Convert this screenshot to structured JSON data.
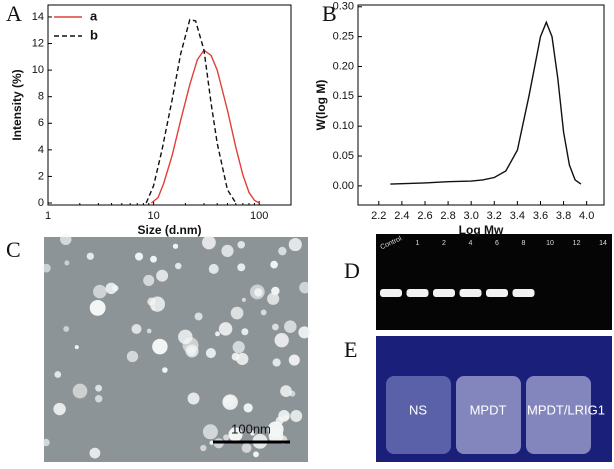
{
  "panel_labels": [
    "A",
    "B",
    "C",
    "D",
    "E"
  ],
  "chart_data": [
    {
      "type": "line",
      "xlabel": "Size (d.nm)",
      "ylabel": "Intensity (%)",
      "xlog": true,
      "xlim": [
        1,
        200
      ],
      "ylim": [
        -0.15,
        14.9
      ],
      "xticks": [
        1,
        10,
        100
      ],
      "yticks": [
        0,
        2,
        4,
        6,
        8,
        10,
        12,
        14
      ],
      "legend": "upper left",
      "series": [
        {
          "name": "a",
          "color": "#e0403a",
          "dash": false,
          "x": [
            9.5,
            11,
            12.5,
            15,
            18,
            22,
            26,
            30,
            35,
            40,
            50,
            60,
            70,
            80,
            90,
            100
          ],
          "values": [
            0,
            0.4,
            1.5,
            3.6,
            6.2,
            8.9,
            10.8,
            11.5,
            11.1,
            10,
            7,
            4.2,
            2.1,
            0.8,
            0.2,
            0
          ]
        },
        {
          "name": "b",
          "color": "#111111",
          "dash": true,
          "x": [
            8.5,
            10,
            12,
            15,
            18,
            22,
            25,
            30,
            35,
            40,
            50,
            60
          ],
          "values": [
            0,
            1.3,
            4,
            7.8,
            11.2,
            13.8,
            13.7,
            11.5,
            7.5,
            4.5,
            1,
            0
          ]
        }
      ]
    },
    {
      "type": "line",
      "xlabel": "Log Mw",
      "ylabel": "W(log M)",
      "xlog": false,
      "xlim": [
        2.02,
        4.15
      ],
      "ylim": [
        -0.032,
        0.303
      ],
      "xticks": [
        2.2,
        2.4,
        2.6,
        2.8,
        {
          "value": 3,
          "label": "3.0"
        },
        3.2,
        3.4,
        3.6,
        3.8,
        {
          "value": 4,
          "label": "4.0"
        }
      ],
      "yticks": [
        {
          "value": 0,
          "label": "0.00"
        },
        {
          "value": 0.05,
          "label": "0.05"
        },
        {
          "value": 0.1,
          "label": "0.10"
        },
        {
          "value": 0.15,
          "label": "0.15"
        },
        {
          "value": 0.2,
          "label": "0.20"
        },
        {
          "value": 0.25,
          "label": "0.25"
        },
        {
          "value": 0.3,
          "label": "0.30"
        }
      ],
      "series": [
        {
          "color": "#111111",
          "dash": false,
          "x": [
            2.3,
            2.6,
            2.8,
            3.0,
            3.1,
            3.2,
            3.3,
            3.4,
            3.5,
            3.55,
            3.6,
            3.65,
            3.7,
            3.75,
            3.8,
            3.85,
            3.9,
            3.95
          ],
          "values": [
            0.003,
            0.005,
            0.007,
            0.008,
            0.01,
            0.014,
            0.025,
            0.06,
            0.15,
            0.2,
            0.25,
            0.274,
            0.25,
            0.18,
            0.09,
            0.035,
            0.01,
            0.003
          ]
        }
      ]
    }
  ],
  "image_c": {
    "scale_bar": "100nm"
  },
  "image_d": {
    "lanes": [
      "Control",
      "1",
      "2",
      "4",
      "6",
      "8",
      "10",
      "12",
      "14"
    ]
  },
  "image_e": {
    "labels": [
      "NS",
      "MPDT",
      "MPDT/LRIG1"
    ]
  }
}
